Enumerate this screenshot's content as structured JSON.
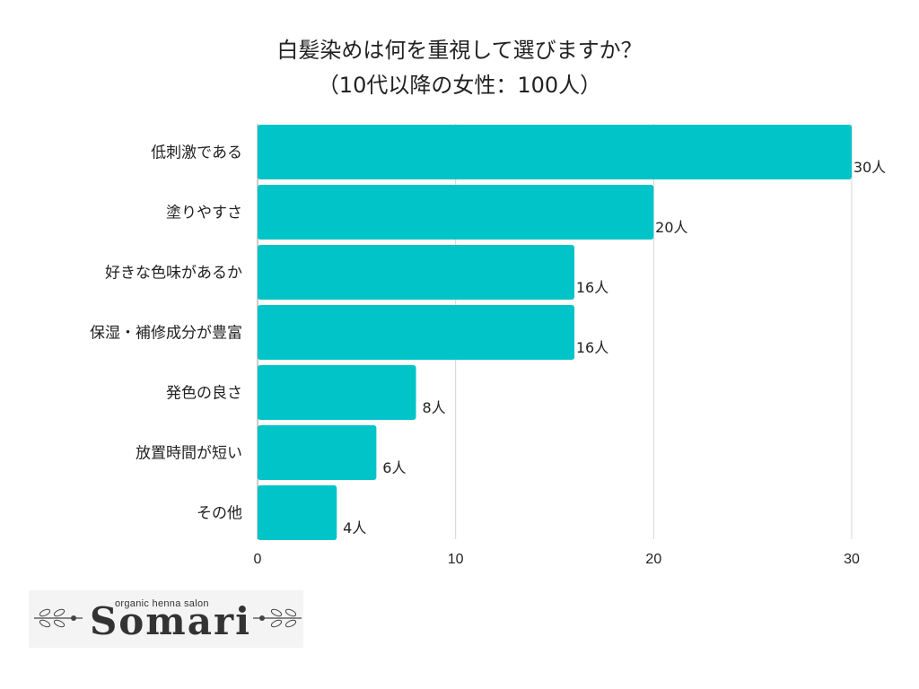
{
  "title": {
    "line1": "白髪染めは何を重視して選びますか？",
    "line2": "（10代以降の女性：100人）"
  },
  "chart_data": {
    "type": "bar",
    "orientation": "horizontal",
    "categories": [
      "低刺激である",
      "塗りやすさ",
      "好きな色味があるか",
      "保湿・補修成分が豊富",
      "発色の良さ",
      "放置時間が短い",
      "その他"
    ],
    "values": [
      30,
      20,
      16,
      16,
      8,
      6,
      4
    ],
    "value_labels": [
      "30人",
      "20人",
      "16人",
      "16人",
      "8人",
      "6人",
      "4人"
    ],
    "xlim": [
      0,
      30
    ],
    "xticks": [
      "0",
      "10",
      "20",
      "30"
    ],
    "grid": true,
    "bar_color": "#00c4c8"
  },
  "logo": {
    "tagline": "organic henna salon",
    "name": "Somari"
  }
}
